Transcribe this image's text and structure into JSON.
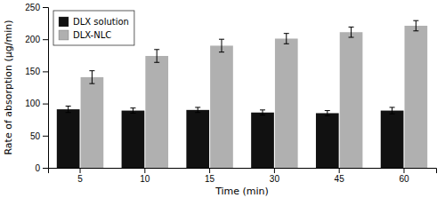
{
  "chart_data": {
    "type": "bar",
    "xlabel": "Time (min)",
    "ylabel": "Rate of absorption (μg/min)",
    "categories": [
      "5",
      "10",
      "15",
      "30",
      "45",
      "60"
    ],
    "series": [
      {
        "name": "DLX solution",
        "color": "#111111",
        "values": [
          91,
          89,
          90,
          86,
          85,
          89
        ],
        "errors": [
          5,
          4,
          4,
          4,
          4,
          5
        ]
      },
      {
        "name": "DLX-NLC",
        "color": "#b0b0b0",
        "values": [
          141,
          174,
          190,
          201,
          211,
          221
        ],
        "errors": [
          10,
          10,
          10,
          8,
          8,
          8
        ]
      }
    ],
    "ylim": [
      0,
      250
    ],
    "yticks": [
      0,
      50,
      100,
      150,
      200,
      250
    ],
    "grid": false,
    "legend": "upper left"
  }
}
